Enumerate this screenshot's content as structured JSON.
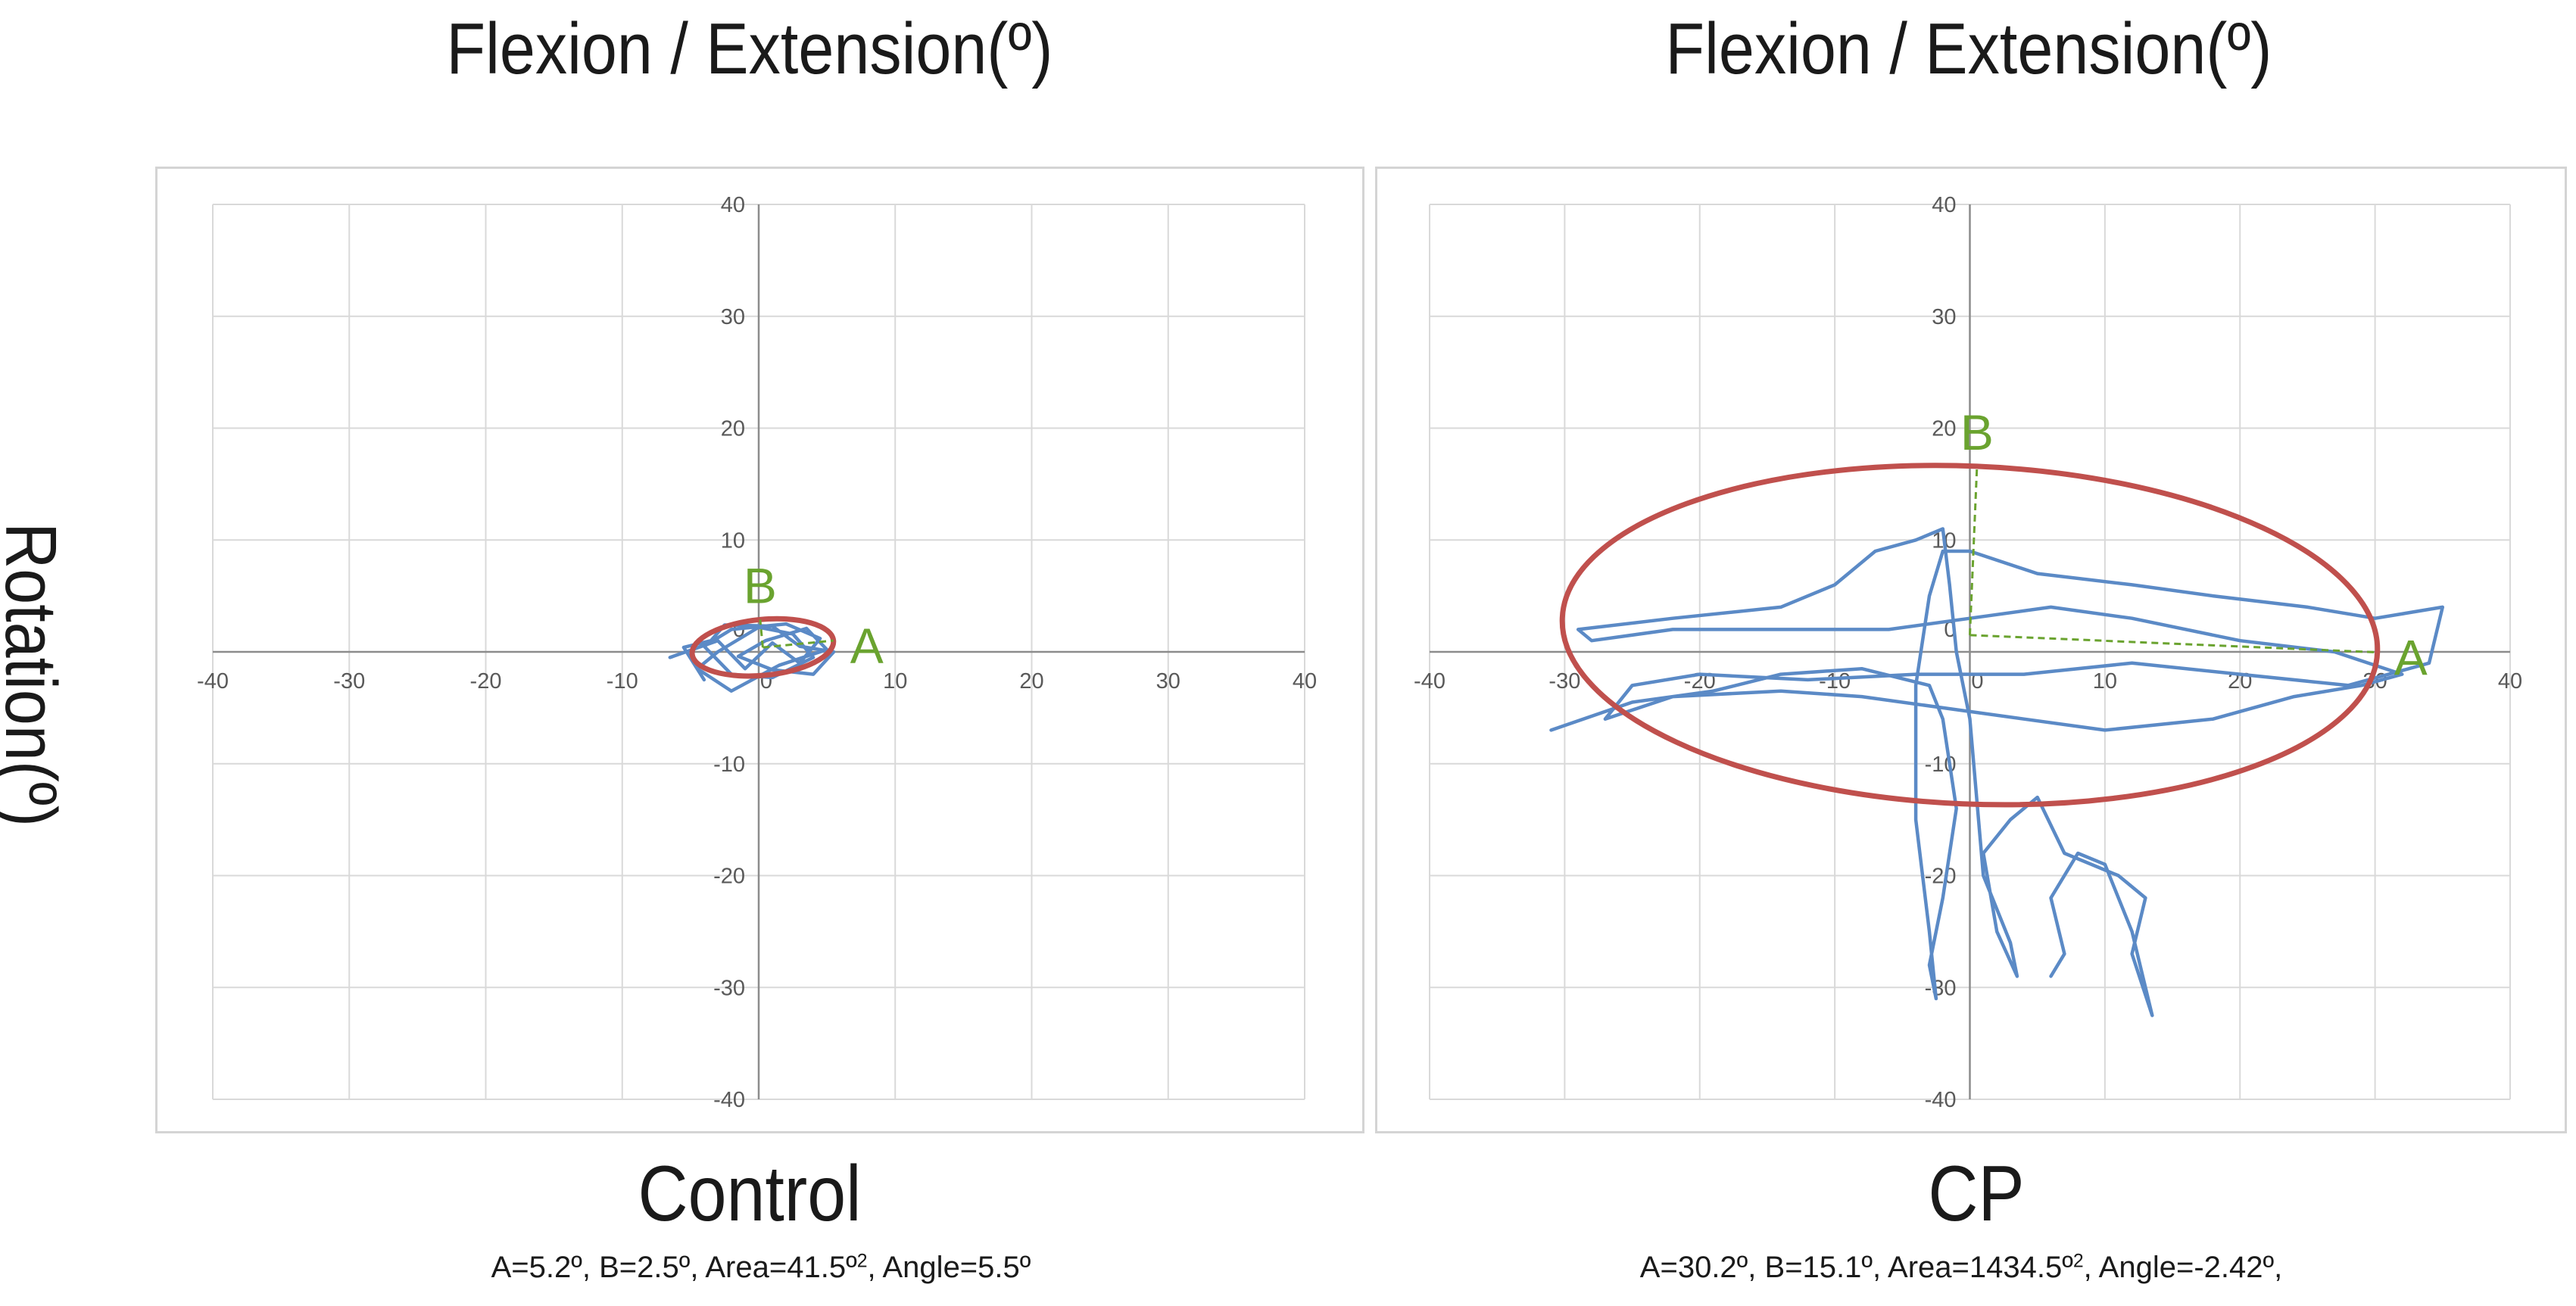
{
  "figure": {
    "ylabel": "Rotation(º)"
  },
  "panels": [
    {
      "title": "Flexion / Extension(º)",
      "name": "Control",
      "caption": {
        "a": "A=5.2º, B=2.5º, Area=41.5º",
        "sup": "2",
        "rest": ", Angle=5.5º"
      }
    },
    {
      "title": "Flexion / Extension(º)",
      "name": "CP",
      "caption": {
        "a": "A=30.2º, B=15.1º, Area=1434.5º",
        "sup": "2",
        "rest": ", Angle=-2.42º,"
      }
    }
  ],
  "chart_data": [
    {
      "type": "scatter",
      "name": "Control",
      "xlim": [
        -40,
        40
      ],
      "ylim": [
        -40,
        40
      ],
      "xticks": [
        -40,
        -30,
        -20,
        -10,
        0,
        10,
        20,
        30,
        40
      ],
      "yticks": [
        -40,
        -30,
        -20,
        -10,
        0,
        10,
        20,
        30,
        40
      ],
      "tick_labels_x": [
        "-40",
        "-30",
        "-20",
        "-10",
        "0",
        "10",
        "20",
        "30",
        "40"
      ],
      "tick_labels_y": [
        "40",
        "30",
        "20",
        "10",
        "0",
        "-10",
        "-20",
        "-30",
        "-40"
      ],
      "grid": true,
      "colors": {
        "trace": "#5b8ac6",
        "ellipse": "#c0504d",
        "axes_marker": "#6aa32f",
        "grid": "#d9d9d9",
        "tick": "#595959"
      },
      "trace": [
        [
          -6.5,
          -0.5
        ],
        [
          -3,
          1
        ],
        [
          -1,
          -1.5
        ],
        [
          1,
          0.8
        ],
        [
          3,
          -1
        ],
        [
          4.5,
          1.2
        ],
        [
          2,
          2.5
        ],
        [
          -2,
          2
        ],
        [
          -4,
          0.5
        ],
        [
          -2,
          -2
        ],
        [
          1,
          -2.3
        ],
        [
          4,
          -0.5
        ],
        [
          2.5,
          1.6
        ],
        [
          0,
          2.2
        ],
        [
          -3,
          0
        ],
        [
          -4.5,
          -1.5
        ],
        [
          -2,
          -3.5
        ],
        [
          1.5,
          -1.2
        ],
        [
          5,
          0.2
        ],
        [
          3.5,
          2.1
        ],
        [
          0.5,
          1
        ],
        [
          -1.5,
          -0.4
        ],
        [
          1,
          -1.6
        ],
        [
          4,
          -2
        ],
        [
          5.5,
          0
        ],
        [
          3,
          0.5
        ],
        [
          1,
          2.3
        ],
        [
          -2.5,
          2.4
        ],
        [
          -3.5,
          1
        ],
        [
          -5.5,
          0.4
        ],
        [
          -4,
          -2.5
        ]
      ],
      "ellipse": {
        "center": [
          0.3,
          0.4
        ],
        "a": 5.2,
        "b": 2.5,
        "angle_deg": 5.5
      },
      "axis_labels": {
        "a": "A",
        "b": "B"
      }
    },
    {
      "type": "scatter",
      "name": "CP",
      "xlim": [
        -40,
        40
      ],
      "ylim": [
        -40,
        40
      ],
      "xticks": [
        -40,
        -30,
        -20,
        -10,
        0,
        10,
        20,
        30,
        40
      ],
      "yticks": [
        -40,
        -30,
        -20,
        -10,
        0,
        10,
        20,
        30,
        40
      ],
      "tick_labels_x": [
        "-40",
        "-30",
        "-20",
        "-10",
        "0",
        "10",
        "20",
        "30",
        "40"
      ],
      "tick_labels_y": [
        "40",
        "30",
        "20",
        "10",
        "0",
        "-10",
        "-20",
        "-30",
        "-40"
      ],
      "grid": true,
      "colors": {
        "trace": "#5b8ac6",
        "ellipse": "#c0504d",
        "axes_marker": "#6aa32f",
        "grid": "#d9d9d9",
        "tick": "#595959"
      },
      "trace": [
        [
          -31,
          -7
        ],
        [
          -25,
          -4.5
        ],
        [
          -19,
          -3.5
        ],
        [
          -14,
          -2
        ],
        [
          -8,
          -1.5
        ],
        [
          -3,
          -3
        ],
        [
          -2,
          -6
        ],
        [
          -1,
          -14
        ],
        [
          -2,
          -22
        ],
        [
          -3,
          -28
        ],
        [
          -2.5,
          -31
        ],
        [
          -3,
          -25
        ],
        [
          -4,
          -15
        ],
        [
          -4,
          -3
        ],
        [
          -3,
          5
        ],
        [
          -2,
          9
        ],
        [
          0,
          9
        ],
        [
          5,
          7
        ],
        [
          12,
          6
        ],
        [
          18,
          5
        ],
        [
          25,
          4
        ],
        [
          30,
          3
        ],
        [
          35,
          4
        ],
        [
          34,
          -1
        ],
        [
          28,
          -3
        ],
        [
          20,
          -2
        ],
        [
          12,
          -1
        ],
        [
          4,
          -2
        ],
        [
          -4,
          -2
        ],
        [
          -12,
          -2.5
        ],
        [
          -20,
          -2
        ],
        [
          -25,
          -3
        ],
        [
          -27,
          -6
        ],
        [
          -22,
          -4
        ],
        [
          -14,
          -3.5
        ],
        [
          -8,
          -4
        ],
        [
          -2,
          -5
        ],
        [
          4,
          -6
        ],
        [
          10,
          -7
        ],
        [
          18,
          -6
        ],
        [
          24,
          -4
        ],
        [
          29,
          -3
        ],
        [
          32,
          -2
        ],
        [
          27,
          0
        ],
        [
          20,
          1
        ],
        [
          12,
          3
        ],
        [
          6,
          4
        ],
        [
          0,
          3
        ],
        [
          -6,
          2
        ],
        [
          -14,
          2
        ],
        [
          -22,
          2
        ],
        [
          -28,
          1
        ],
        [
          -29,
          2
        ],
        [
          -22,
          3
        ],
        [
          -14,
          4
        ],
        [
          -10,
          6
        ],
        [
          -7,
          9
        ],
        [
          -4,
          10
        ],
        [
          -2,
          11
        ],
        [
          -1.5,
          6
        ],
        [
          -1,
          0
        ],
        [
          0,
          -6
        ],
        [
          0.5,
          -13
        ],
        [
          1,
          -20
        ],
        [
          3,
          -26
        ],
        [
          3.5,
          -29
        ],
        [
          2,
          -25
        ],
        [
          1,
          -18
        ],
        [
          3,
          -15
        ],
        [
          5,
          -13
        ],
        [
          7,
          -18
        ],
        [
          11,
          -20
        ],
        [
          13,
          -22
        ],
        [
          12,
          -27
        ],
        [
          13.5,
          -32.5
        ],
        [
          12,
          -25
        ],
        [
          10,
          -19
        ],
        [
          8,
          -18
        ],
        [
          6,
          -22
        ],
        [
          7,
          -27
        ],
        [
          6,
          -29
        ]
      ],
      "ellipse": {
        "center": [
          0,
          1.5
        ],
        "a": 30.2,
        "b": 15.1,
        "angle_deg": -2.42
      },
      "axis_labels": {
        "a": "A",
        "b": "B"
      }
    }
  ]
}
